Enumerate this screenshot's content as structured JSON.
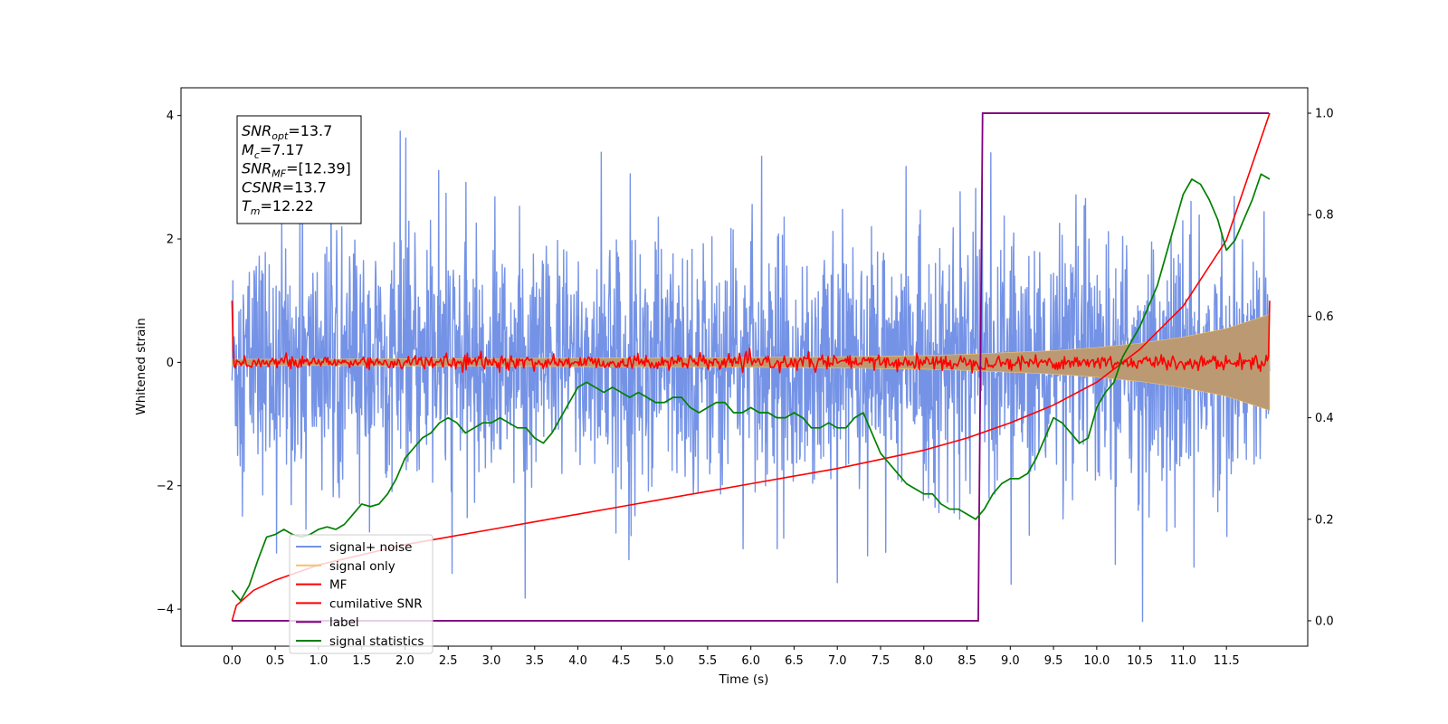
{
  "chart_data": {
    "type": "line",
    "xlabel": "Time (s)",
    "ylabel_left": "Whitened strain",
    "ylabel_right": "",
    "xlim": [
      -0.59,
      12.44
    ],
    "ylim_left": [
      -4.6,
      4.45
    ],
    "ylim_right": [
      -0.05,
      1.05
    ],
    "x_ticks": [
      0.0,
      0.5,
      1.0,
      1.5,
      2.0,
      2.5,
      3.0,
      3.5,
      4.0,
      4.5,
      5.0,
      5.5,
      6.0,
      6.5,
      7.0,
      7.5,
      8.0,
      8.5,
      9.0,
      9.5,
      10.0,
      10.5,
      11.0,
      11.5
    ],
    "x_tick_labels": [
      "0.0",
      "0.5",
      "1.0",
      "1.5",
      "2.0",
      "2.5",
      "3.0",
      "3.5",
      "4.0",
      "4.5",
      "5.0",
      "5.5",
      "6.0",
      "6.5",
      "7.0",
      "7.5",
      "8.0",
      "8.5",
      "9.0",
      "9.5",
      "10.0",
      "10.5",
      "11.0",
      "11.5"
    ],
    "y_ticks_left": [
      -4,
      -2,
      0,
      2,
      4
    ],
    "y_tick_labels_left": [
      "−4",
      "−2",
      "0",
      "2",
      "4"
    ],
    "y_ticks_right": [
      0.0,
      0.2,
      0.4,
      0.6,
      0.8,
      1.0
    ],
    "y_tick_labels_right": [
      "0.0",
      "0.2",
      "0.4",
      "0.6",
      "0.8",
      "1.0"
    ],
    "grid": false,
    "legend_placement": "lower-left",
    "info_box": {
      "placement": "top-left",
      "lines": [
        {
          "base": "SNR",
          "sub": "opt",
          "value": "=13.7"
        },
        {
          "base": "M",
          "sub": "c",
          "value": "=7.17"
        },
        {
          "base": "SNR",
          "sub": "MF",
          "value": "=[12.39]"
        },
        {
          "base": "CSNR",
          "sub": "",
          "value": "=13.7"
        },
        {
          "base": "T",
          "sub": "m",
          "value": "=12.22"
        }
      ]
    },
    "series": [
      {
        "name": "signal+ noise",
        "color": "#7593e6",
        "axis": "left",
        "kind": "noise",
        "x_range": [
          0.0,
          12.0
        ],
        "mean": 0.0,
        "range": [
          -4.2,
          4.0
        ],
        "envelope_points": [
          [
            0.0,
            2.3
          ],
          [
            12.0,
            2.3
          ]
        ]
      },
      {
        "name": "signal only",
        "color": "#f2c46e",
        "axis": "left",
        "kind": "envelope",
        "x": [
          0.0,
          1.0,
          2.0,
          3.0,
          4.0,
          5.0,
          6.0,
          7.0,
          8.0,
          8.5,
          9.0,
          9.5,
          10.0,
          10.5,
          11.0,
          11.5,
          12.0
        ],
        "amplitude": [
          0.05,
          0.05,
          0.06,
          0.06,
          0.07,
          0.07,
          0.08,
          0.09,
          0.11,
          0.13,
          0.16,
          0.19,
          0.24,
          0.31,
          0.41,
          0.55,
          0.78
        ]
      },
      {
        "name": "MF",
        "color": "#ff0000",
        "axis": "left",
        "kind": "noisy-line",
        "x_range": [
          0.0,
          12.0
        ],
        "mean": 0.0,
        "spike_start": 1.0,
        "spike_end": 1.0
      },
      {
        "name": "cumilative SNR",
        "color": "#ff0000",
        "axis": "right",
        "x": [
          0.0,
          0.05,
          0.25,
          0.5,
          1.0,
          1.5,
          2.0,
          2.5,
          3.0,
          3.5,
          4.0,
          4.5,
          5.0,
          5.5,
          6.0,
          6.5,
          7.0,
          7.5,
          8.0,
          8.5,
          9.0,
          9.5,
          10.0,
          10.5,
          11.0,
          11.5,
          12.0
        ],
        "y": [
          0.0,
          0.03,
          0.06,
          0.08,
          0.11,
          0.13,
          0.15,
          0.165,
          0.18,
          0.195,
          0.21,
          0.225,
          0.24,
          0.255,
          0.27,
          0.285,
          0.3,
          0.318,
          0.336,
          0.36,
          0.39,
          0.425,
          0.47,
          0.535,
          0.62,
          0.75,
          1.0
        ]
      },
      {
        "name": "label",
        "color": "#800080",
        "axis": "right",
        "x": [
          0.0,
          8.63,
          8.68,
          11.99
        ],
        "y": [
          0.0,
          0.0,
          1.0,
          1.0
        ]
      },
      {
        "name": "signal statistics",
        "color": "#008000",
        "axis": "right",
        "x": [
          0.0,
          0.1,
          0.2,
          0.3,
          0.4,
          0.5,
          0.6,
          0.7,
          0.8,
          0.9,
          1.0,
          1.1,
          1.2,
          1.3,
          1.4,
          1.5,
          1.6,
          1.7,
          1.8,
          1.9,
          2.0,
          2.1,
          2.2,
          2.3,
          2.4,
          2.5,
          2.6,
          2.7,
          2.8,
          2.9,
          3.0,
          3.1,
          3.2,
          3.3,
          3.4,
          3.5,
          3.6,
          3.7,
          3.8,
          3.9,
          4.0,
          4.1,
          4.2,
          4.3,
          4.4,
          4.5,
          4.6,
          4.7,
          4.8,
          4.9,
          5.0,
          5.1,
          5.2,
          5.3,
          5.4,
          5.5,
          5.6,
          5.7,
          5.8,
          5.9,
          6.0,
          6.1,
          6.2,
          6.3,
          6.4,
          6.5,
          6.6,
          6.7,
          6.8,
          6.9,
          7.0,
          7.1,
          7.2,
          7.3,
          7.4,
          7.5,
          7.6,
          7.7,
          7.8,
          7.9,
          8.0,
          8.1,
          8.2,
          8.3,
          8.4,
          8.5,
          8.6,
          8.7,
          8.8,
          8.9,
          9.0,
          9.1,
          9.2,
          9.3,
          9.4,
          9.5,
          9.6,
          9.7,
          9.8,
          9.9,
          10.0,
          10.1,
          10.2,
          10.3,
          10.4,
          10.5,
          10.6,
          10.7,
          10.8,
          10.9,
          11.0,
          11.1,
          11.2,
          11.3,
          11.4,
          11.5,
          11.6,
          11.7,
          11.8,
          11.9,
          12.0
        ],
        "y": [
          0.06,
          0.04,
          0.07,
          0.12,
          0.165,
          0.17,
          0.18,
          0.17,
          0.165,
          0.17,
          0.18,
          0.185,
          0.18,
          0.19,
          0.21,
          0.23,
          0.225,
          0.23,
          0.25,
          0.28,
          0.32,
          0.34,
          0.36,
          0.37,
          0.39,
          0.4,
          0.39,
          0.37,
          0.38,
          0.39,
          0.39,
          0.4,
          0.39,
          0.38,
          0.38,
          0.36,
          0.35,
          0.37,
          0.4,
          0.43,
          0.46,
          0.47,
          0.46,
          0.45,
          0.46,
          0.45,
          0.44,
          0.45,
          0.44,
          0.43,
          0.43,
          0.44,
          0.44,
          0.42,
          0.41,
          0.42,
          0.43,
          0.43,
          0.41,
          0.41,
          0.42,
          0.41,
          0.41,
          0.4,
          0.4,
          0.41,
          0.4,
          0.38,
          0.38,
          0.39,
          0.38,
          0.38,
          0.4,
          0.41,
          0.37,
          0.33,
          0.31,
          0.29,
          0.27,
          0.26,
          0.25,
          0.25,
          0.23,
          0.22,
          0.22,
          0.21,
          0.2,
          0.22,
          0.25,
          0.27,
          0.28,
          0.28,
          0.29,
          0.32,
          0.36,
          0.4,
          0.39,
          0.37,
          0.35,
          0.36,
          0.42,
          0.45,
          0.47,
          0.52,
          0.55,
          0.58,
          0.62,
          0.66,
          0.72,
          0.78,
          0.84,
          0.87,
          0.86,
          0.83,
          0.79,
          0.73,
          0.75,
          0.79,
          0.83,
          0.88,
          0.87
        ]
      }
    ]
  }
}
